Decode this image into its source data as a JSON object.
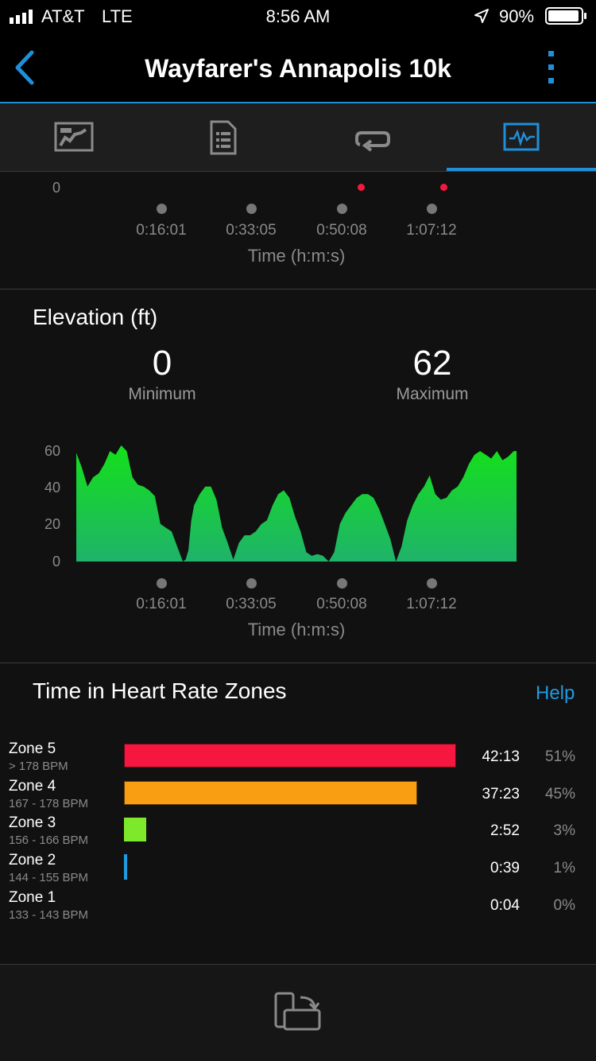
{
  "status_bar": {
    "carrier": "AT&T",
    "network": "LTE",
    "time": "8:56 AM",
    "battery": "90%"
  },
  "header": {
    "title": "Wayfarer's Annapolis 10k"
  },
  "tabs": [
    {
      "icon": "map-icon",
      "active": false
    },
    {
      "icon": "details-list-icon",
      "active": false
    },
    {
      "icon": "laps-loop-icon",
      "active": false
    },
    {
      "icon": "charts-icon",
      "active": true
    }
  ],
  "top_chart": {
    "y_zero_label": "0",
    "x_ticks": [
      "0:16:01",
      "0:33:05",
      "0:50:08",
      "1:07:12"
    ],
    "x_title": "Time (h:m:s)"
  },
  "elevation": {
    "title": "Elevation (ft)",
    "minimum_value": "0",
    "minimum_label": "Minimum",
    "maximum_value": "62",
    "maximum_label": "Maximum"
  },
  "chart_data": {
    "type": "area",
    "title": "Elevation (ft)",
    "xlabel": "Time (h:m:s)",
    "ylabel": "",
    "x_tick_labels": [
      "0:16:01",
      "0:33:05",
      "0:50:08",
      "1:07:12"
    ],
    "y_ticks": [
      "0",
      "20",
      "40",
      "60"
    ],
    "ylim": [
      0,
      62
    ],
    "xlim_minutes": [
      0,
      78.5
    ],
    "grid": false,
    "color_top": "#14e01a",
    "color_bottom": "#1fb36a",
    "series": [
      {
        "x_minutes": [
          0,
          1,
          2,
          3,
          4,
          5,
          6,
          7,
          8,
          9,
          10,
          11,
          12,
          13,
          14,
          15,
          16,
          17,
          18,
          19,
          19.5,
          20,
          20.5,
          21,
          22,
          23,
          24,
          25,
          26,
          27,
          28,
          29,
          30,
          31,
          32,
          33,
          34,
          35,
          36,
          37,
          38,
          39,
          40,
          41,
          42,
          43,
          44,
          45,
          46,
          47,
          48,
          49,
          50,
          51,
          52,
          53,
          54,
          55,
          56,
          57,
          58,
          59,
          60,
          61,
          62,
          63,
          64,
          65,
          66,
          67,
          68,
          69,
          70,
          71,
          72,
          73,
          74,
          75,
          76,
          77,
          78,
          78.5
        ],
        "y": [
          58,
          50,
          40,
          45,
          47,
          52,
          59,
          57,
          62,
          59,
          45,
          41,
          40,
          38,
          35,
          20,
          18,
          16,
          8,
          0,
          1,
          6,
          22,
          30,
          36,
          40,
          40,
          33,
          18,
          10,
          1,
          10,
          14,
          14,
          16,
          20,
          22,
          30,
          36,
          38,
          34,
          24,
          16,
          5,
          3,
          4,
          3,
          0,
          5,
          20,
          26,
          30,
          34,
          36,
          36,
          34,
          28,
          20,
          12,
          0,
          8,
          22,
          30,
          36,
          40,
          46,
          36,
          33,
          34,
          38,
          40,
          45,
          52,
          57,
          59,
          57,
          55,
          59,
          54,
          56,
          59,
          59
        ]
      }
    ]
  },
  "hr_zones": {
    "title": "Time in Heart Rate Zones",
    "help_label": "Help",
    "zones": [
      {
        "name": "Zone 5",
        "range": "> 178 BPM",
        "time": "42:13",
        "percent": "51%",
        "fraction": 0.51,
        "color": "#f5173f"
      },
      {
        "name": "Zone 4",
        "range": "167 - 178 BPM",
        "time": "37:23",
        "percent": "45%",
        "fraction": 0.45,
        "color": "#f99d13"
      },
      {
        "name": "Zone 3",
        "range": "156 - 166 BPM",
        "time": "2:52",
        "percent": "3%",
        "fraction": 0.034,
        "color": "#7ee82a"
      },
      {
        "name": "Zone 2",
        "range": "144 - 155 BPM",
        "time": "0:39",
        "percent": "1%",
        "fraction": 0.005,
        "color": "#1f9be0"
      },
      {
        "name": "Zone 1",
        "range": "133 - 143 BPM",
        "time": "0:04",
        "percent": "0%",
        "fraction": 0.0,
        "color": "#888888"
      }
    ]
  }
}
